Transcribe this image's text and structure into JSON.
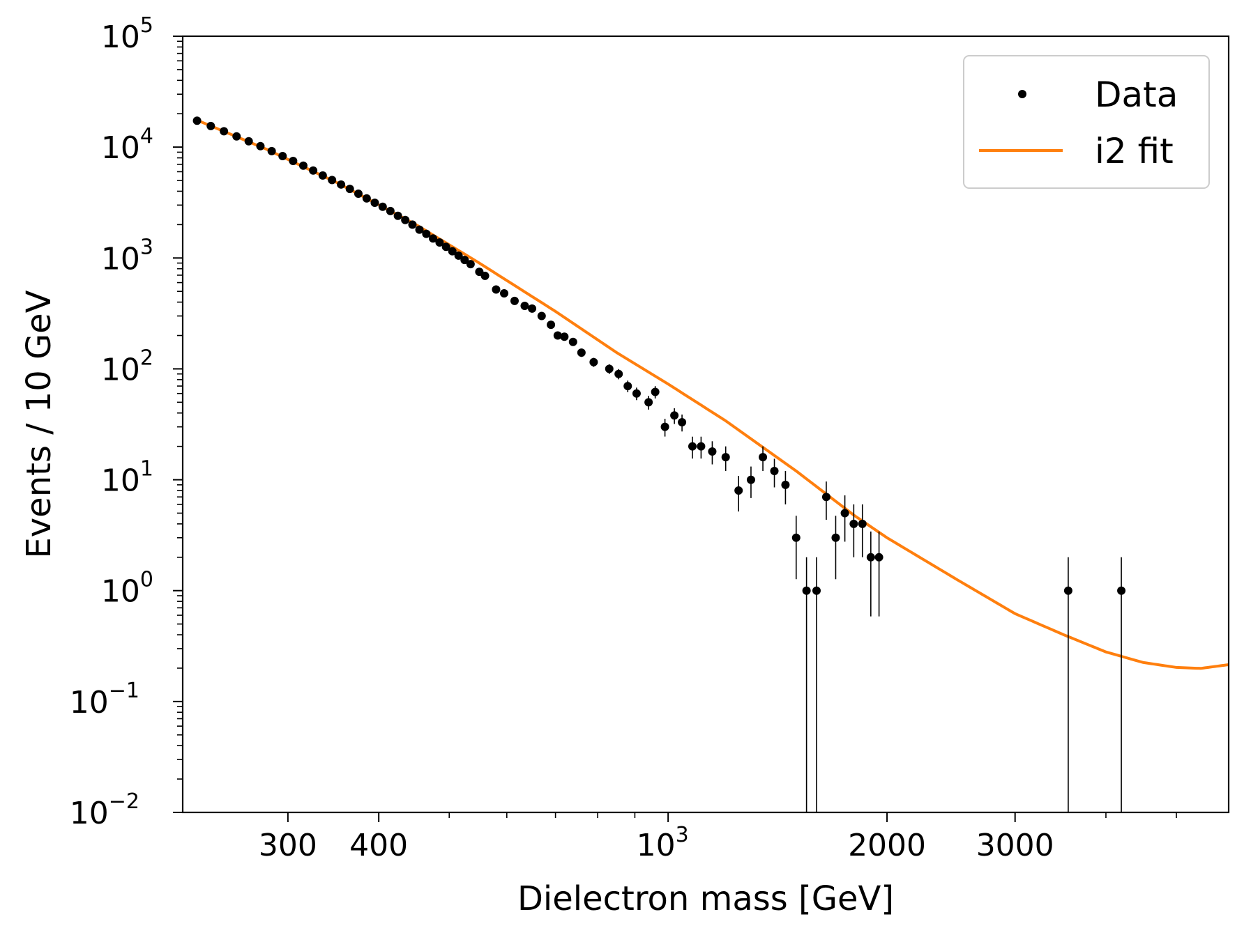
{
  "chart_data": {
    "type": "scatter",
    "title": "",
    "xlabel": "Dielectron mass [GeV]",
    "ylabel": "Events / 10 GeV",
    "x_scale": "log",
    "y_scale": "log",
    "xlim": [
      215,
      5900
    ],
    "ylim": [
      0.01,
      100000
    ],
    "grid": false,
    "legend_position": "top-right",
    "x_ticks": [
      {
        "value": 300,
        "label": "300"
      },
      {
        "value": 400,
        "label": "400"
      },
      {
        "value": 1000,
        "label": "10",
        "exp": "3"
      },
      {
        "value": 2000,
        "label": "2000"
      },
      {
        "value": 3000,
        "label": "3000"
      }
    ],
    "y_ticks": [
      {
        "value": 0.01,
        "base": "10",
        "exp": "−2"
      },
      {
        "value": 0.1,
        "base": "10",
        "exp": "−1"
      },
      {
        "value": 1,
        "base": "10",
        "exp": "0"
      },
      {
        "value": 10,
        "base": "10",
        "exp": "1"
      },
      {
        "value": 100,
        "base": "10",
        "exp": "2"
      },
      {
        "value": 1000,
        "base": "10",
        "exp": "3"
      },
      {
        "value": 10000,
        "base": "10",
        "exp": "4"
      },
      {
        "value": 100000,
        "base": "10",
        "exp": "5"
      }
    ],
    "series": [
      {
        "name": "Data",
        "kind": "points_with_errorbars",
        "color": "#000000",
        "points": [
          [
            225,
            17300
          ],
          [
            235,
            15500
          ],
          [
            245,
            13900
          ],
          [
            255,
            12500
          ],
          [
            265,
            11300
          ],
          [
            275,
            10200
          ],
          [
            285,
            9200
          ],
          [
            295,
            8300
          ],
          [
            305,
            7500
          ],
          [
            315,
            6800
          ],
          [
            325,
            6150
          ],
          [
            335,
            5550
          ],
          [
            345,
            5050
          ],
          [
            355,
            4600
          ],
          [
            365,
            4200
          ],
          [
            375,
            3800
          ],
          [
            385,
            3450
          ],
          [
            395,
            3150
          ],
          [
            405,
            2900
          ],
          [
            415,
            2650
          ],
          [
            425,
            2400
          ],
          [
            435,
            2200
          ],
          [
            445,
            2000
          ],
          [
            455,
            1800
          ],
          [
            465,
            1650
          ],
          [
            475,
            1500
          ],
          [
            485,
            1380
          ],
          [
            495,
            1260
          ],
          [
            505,
            1150
          ],
          [
            515,
            1050
          ],
          [
            525,
            960
          ],
          [
            535,
            880
          ],
          [
            550,
            750
          ],
          [
            560,
            690
          ],
          [
            580,
            520
          ],
          [
            595,
            480
          ],
          [
            615,
            410
          ],
          [
            635,
            370
          ],
          [
            650,
            350
          ],
          [
            670,
            300
          ],
          [
            690,
            250
          ],
          [
            705,
            200
          ],
          [
            720,
            195
          ],
          [
            740,
            175
          ],
          [
            760,
            140
          ],
          [
            790,
            115
          ],
          [
            830,
            100
          ],
          [
            855,
            90
          ],
          [
            880,
            70
          ],
          [
            905,
            60
          ],
          [
            940,
            50
          ],
          [
            960,
            62
          ],
          [
            990,
            30
          ],
          [
            1020,
            38
          ],
          [
            1045,
            33
          ],
          [
            1080,
            20
          ],
          [
            1110,
            20
          ],
          [
            1150,
            18
          ],
          [
            1200,
            16
          ],
          [
            1250,
            8
          ],
          [
            1300,
            10
          ],
          [
            1350,
            16
          ],
          [
            1400,
            12
          ],
          [
            1450,
            9
          ],
          [
            1500,
            3
          ],
          [
            1550,
            1
          ],
          [
            1600,
            1
          ],
          [
            1650,
            7
          ],
          [
            1700,
            3
          ],
          [
            1750,
            5
          ],
          [
            1800,
            4
          ],
          [
            1850,
            4
          ],
          [
            1900,
            2
          ],
          [
            1950,
            2
          ],
          [
            3550,
            1
          ],
          [
            4200,
            1
          ]
        ]
      },
      {
        "name": "i2 fit",
        "kind": "line",
        "color": "#ff7f0e",
        "points": [
          [
            225,
            17500
          ],
          [
            280,
            9600
          ],
          [
            350,
            4800
          ],
          [
            450,
            2000
          ],
          [
            550,
            900
          ],
          [
            700,
            330
          ],
          [
            850,
            140
          ],
          [
            1000,
            73
          ],
          [
            1200,
            34
          ],
          [
            1500,
            12
          ],
          [
            1800,
            4.8
          ],
          [
            2000,
            3.0
          ],
          [
            2500,
            1.25
          ],
          [
            3000,
            0.62
          ],
          [
            3500,
            0.4
          ],
          [
            4000,
            0.28
          ],
          [
            4500,
            0.225
          ],
          [
            5000,
            0.203
          ],
          [
            5400,
            0.199
          ],
          [
            5900,
            0.215
          ]
        ]
      }
    ]
  }
}
